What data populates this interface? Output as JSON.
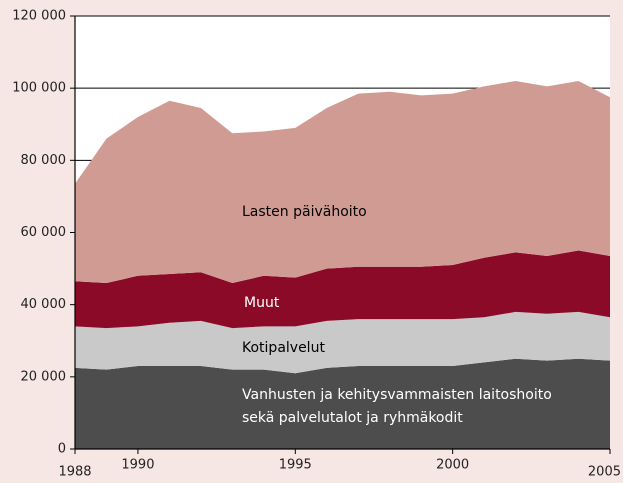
{
  "chart_data": {
    "type": "stacked_area",
    "x": [
      1988,
      1989,
      1990,
      1991,
      1992,
      1993,
      1994,
      1995,
      1996,
      1997,
      1998,
      1999,
      2000,
      2001,
      2002,
      2003,
      2004,
      2005
    ],
    "series": [
      {
        "name": "Vanhusten ja kehitysvammaisten laitoshoito\nsekä palvelutalot ja ryhmäkodit",
        "color": "#4d4d4d",
        "values": [
          22500,
          22000,
          23000,
          23000,
          23000,
          22000,
          22000,
          21000,
          22500,
          23000,
          23000,
          23000,
          23000,
          24000,
          25000,
          24500,
          25000,
          24500
        ]
      },
      {
        "name": "Kotipalvelut",
        "color": "#c9c9c9",
        "values": [
          11500,
          11500,
          11000,
          12000,
          12500,
          11500,
          12000,
          13000,
          13000,
          13000,
          13000,
          13000,
          13000,
          12500,
          13000,
          13000,
          13000,
          12000
        ]
      },
      {
        "name": "Muut",
        "color": "#8b0a27",
        "values": [
          12500,
          12500,
          14000,
          13500,
          13500,
          12500,
          14000,
          13500,
          14500,
          14500,
          14500,
          14500,
          15000,
          16500,
          16500,
          16000,
          17000,
          17000
        ]
      },
      {
        "name": "Lasten päivähoito",
        "color": "#d09b93",
        "values": [
          27000,
          40000,
          44000,
          48000,
          45500,
          41500,
          40000,
          41500,
          44500,
          48000,
          48500,
          47500,
          47500,
          47500,
          47500,
          47000,
          47000,
          44000
        ]
      }
    ],
    "xlim": [
      1988,
      2005
    ],
    "xticks": [
      1988,
      1990,
      1995,
      2000,
      2005
    ],
    "ylim": [
      0,
      120000
    ],
    "yticks": [
      0,
      {
        "value": 20000,
        "label": "20 000"
      },
      {
        "value": 40000,
        "label": "40 000"
      },
      {
        "value": 60000,
        "label": "60 000"
      },
      {
        "value": 80000,
        "label": "80 000"
      },
      {
        "value": 100000,
        "label": "100 000"
      },
      {
        "value": 120000,
        "label": "120 000"
      }
    ],
    "grid": true
  }
}
